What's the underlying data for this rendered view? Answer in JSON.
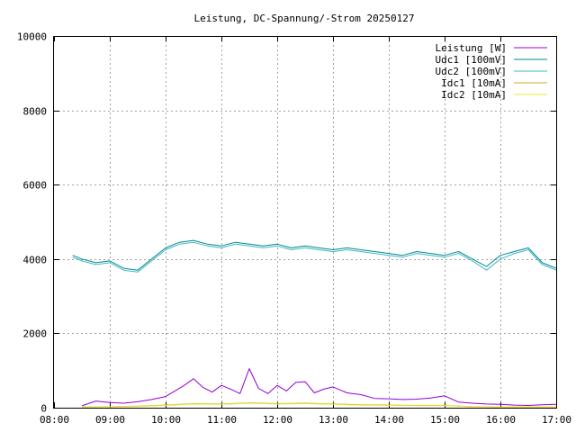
{
  "chart_data": {
    "type": "line",
    "title": "Leistung, DC-Spannung/-Strom 20250127",
    "xlabel": "",
    "ylabel": "",
    "xlim": [
      "08:00",
      "17:00"
    ],
    "ylim": [
      0,
      10000
    ],
    "x_ticks": [
      "08:00",
      "09:00",
      "10:00",
      "11:00",
      "12:00",
      "13:00",
      "14:00",
      "15:00",
      "16:00",
      "17:00"
    ],
    "y_ticks": [
      "0",
      "2000",
      "4000",
      "6000",
      "8000",
      "10000"
    ],
    "grid": true,
    "legend_position": "top-right",
    "series": [
      {
        "name": "Leistung [W]",
        "color": "#9400d3",
        "x": [
          "08:30",
          "08:45",
          "09:00",
          "09:15",
          "09:30",
          "09:45",
          "10:00",
          "10:10",
          "10:20",
          "10:30",
          "10:40",
          "10:50",
          "11:00",
          "11:10",
          "11:20",
          "11:30",
          "11:40",
          "11:50",
          "12:00",
          "12:10",
          "12:20",
          "12:30",
          "12:40",
          "12:50",
          "13:00",
          "13:15",
          "13:30",
          "13:45",
          "14:00",
          "14:15",
          "14:30",
          "14:45",
          "15:00",
          "15:15",
          "15:30",
          "15:45",
          "16:00",
          "16:15",
          "16:30",
          "16:45",
          "17:00"
        ],
        "y": [
          50,
          180,
          140,
          120,
          160,
          220,
          300,
          450,
          600,
          780,
          550,
          420,
          600,
          500,
          380,
          1050,
          520,
          380,
          600,
          450,
          680,
          700,
          400,
          500,
          560,
          400,
          350,
          250,
          240,
          220,
          230,
          260,
          320,
          150,
          120,
          100,
          90,
          70,
          60,
          80,
          90
        ]
      },
      {
        "name": "Udc1 [100mV]",
        "color": "#008b8b",
        "x": [
          "08:20",
          "08:30",
          "08:45",
          "09:00",
          "09:15",
          "09:30",
          "09:45",
          "10:00",
          "10:15",
          "10:30",
          "10:45",
          "11:00",
          "11:15",
          "11:30",
          "11:45",
          "12:00",
          "12:15",
          "12:30",
          "12:45",
          "13:00",
          "13:15",
          "13:30",
          "13:45",
          "14:00",
          "14:15",
          "14:30",
          "14:45",
          "15:00",
          "15:15",
          "15:30",
          "15:45",
          "16:00",
          "16:15",
          "16:30",
          "16:45",
          "17:00"
        ],
        "y": [
          4100,
          4000,
          3900,
          3950,
          3750,
          3700,
          4000,
          4300,
          4450,
          4500,
          4400,
          4350,
          4450,
          4400,
          4350,
          4400,
          4300,
          4350,
          4300,
          4250,
          4300,
          4250,
          4200,
          4150,
          4100,
          4200,
          4150,
          4100,
          4200,
          4000,
          3800,
          4100,
          4200,
          4300,
          3900,
          3750
        ]
      },
      {
        "name": "Udc2 [100mV]",
        "color": "#40b8c8",
        "x": [
          "08:20",
          "08:30",
          "08:45",
          "09:00",
          "09:15",
          "09:30",
          "09:45",
          "10:00",
          "10:15",
          "10:30",
          "10:45",
          "11:00",
          "11:15",
          "11:30",
          "11:45",
          "12:00",
          "12:15",
          "12:30",
          "12:45",
          "13:00",
          "13:15",
          "13:30",
          "13:45",
          "14:00",
          "14:15",
          "14:30",
          "14:45",
          "15:00",
          "15:15",
          "15:30",
          "15:45",
          "16:00",
          "16:15",
          "16:30",
          "16:45",
          "17:00"
        ],
        "y": [
          4050,
          3950,
          3850,
          3900,
          3700,
          3650,
          3950,
          4250,
          4400,
          4450,
          4350,
          4300,
          4400,
          4350,
          4300,
          4350,
          4250,
          4300,
          4250,
          4200,
          4250,
          4200,
          4150,
          4100,
          4050,
          4150,
          4100,
          4050,
          4150,
          3950,
          3700,
          4000,
          4150,
          4250,
          3850,
          3700
        ]
      },
      {
        "name": "Idc1 [10mA]",
        "color": "#daa520",
        "x": [
          "08:30",
          "09:00",
          "09:30",
          "10:00",
          "10:30",
          "11:00",
          "11:30",
          "12:00",
          "12:30",
          "13:00",
          "13:30",
          "14:00",
          "14:30",
          "15:00",
          "15:30",
          "16:00",
          "16:30",
          "17:00"
        ],
        "y": [
          20,
          30,
          40,
          70,
          110,
          100,
          130,
          110,
          120,
          100,
          80,
          70,
          60,
          60,
          30,
          20,
          20,
          20
        ]
      },
      {
        "name": "Idc2 [10mA]",
        "color": "#e8e830",
        "x": [
          "08:30",
          "09:00",
          "09:30",
          "10:00",
          "10:30",
          "11:00",
          "11:30",
          "12:00",
          "12:30",
          "13:00",
          "13:30",
          "14:00",
          "14:30",
          "15:00",
          "15:30",
          "16:00",
          "16:30",
          "17:00"
        ],
        "y": [
          15,
          25,
          35,
          60,
          100,
          90,
          120,
          100,
          110,
          90,
          70,
          60,
          55,
          55,
          25,
          15,
          15,
          15
        ]
      }
    ]
  }
}
